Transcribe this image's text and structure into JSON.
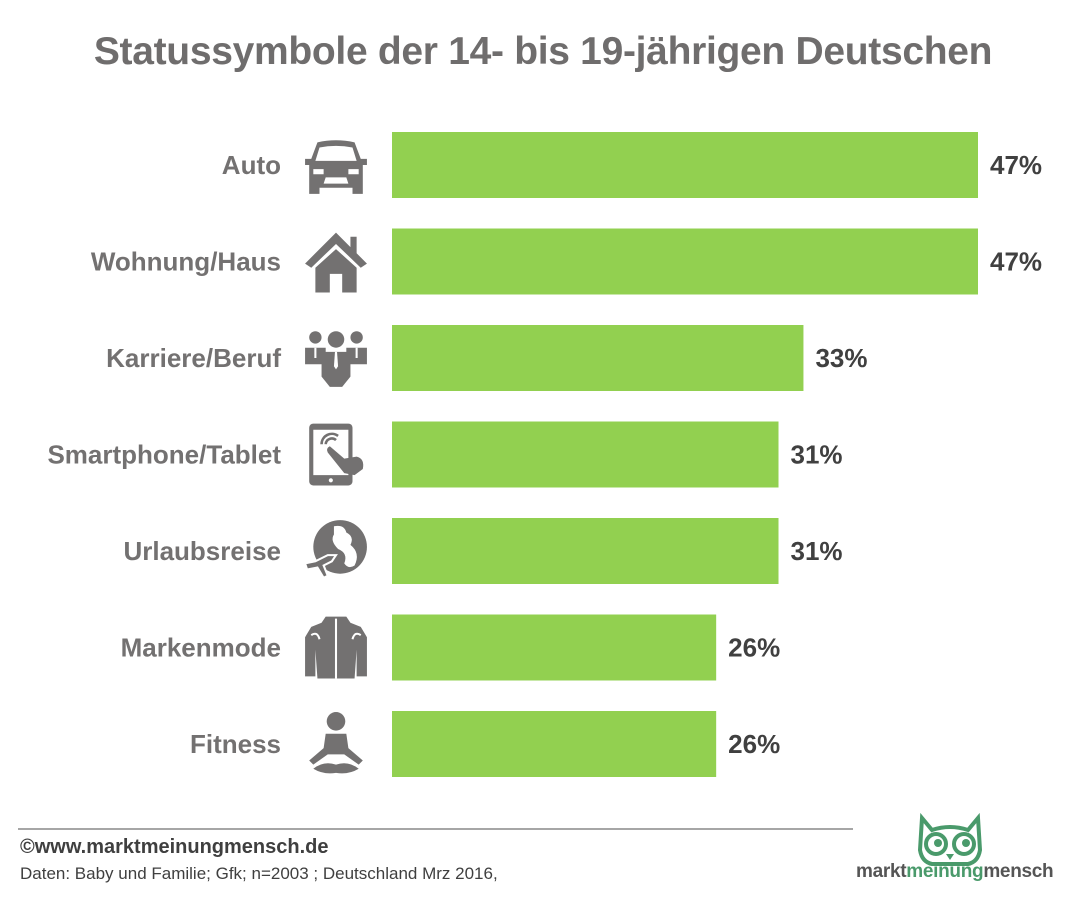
{
  "title": "Statussymbole der 14- bis 19-jährigen Deutschen",
  "chart_data": {
    "type": "bar",
    "orientation": "horizontal",
    "title": "Statussymbole der 14- bis 19-jährigen Deutschen",
    "xlabel": "",
    "ylabel": "",
    "categories": [
      "Auto",
      "Wohnung/Haus",
      "Karriere/Beruf",
      "Smartphone/Tablet",
      "Urlaubsreise",
      "Markenmode",
      "Fitness"
    ],
    "values": [
      47,
      47,
      33,
      31,
      31,
      26,
      26
    ],
    "value_labels": [
      "47%",
      "47%",
      "33%",
      "31%",
      "31%",
      "26%",
      "26%"
    ],
    "icons": [
      "car-icon",
      "house-icon",
      "business-team-icon",
      "tablet-touch-icon",
      "globe-airplane-icon",
      "jacket-icon",
      "meditation-icon"
    ],
    "unit": "%",
    "xlim": [
      0,
      47
    ],
    "grid": false,
    "bar_color": "#92d050",
    "icon_color": "#737171"
  },
  "footer": {
    "copyright": "©www.marktmeinungmensch.de",
    "source": "Daten: Baby und Familie; Gfk; n=2003 ; Deutschland Mrz 2016,"
  },
  "logo": {
    "part1": "markt",
    "part2": "meinung",
    "part3": "mensch",
    "accent_color": "#4a9a6b"
  }
}
